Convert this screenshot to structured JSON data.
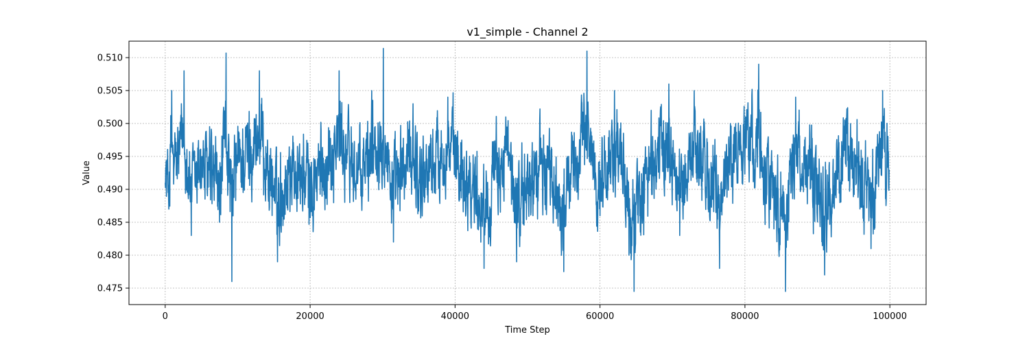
{
  "chart_data": {
    "type": "line",
    "title": "v1_simple - Channel 2",
    "xlabel": "Time Step",
    "ylabel": "Value",
    "xlim": [
      -5000,
      105000
    ],
    "ylim": [
      0.4725,
      0.5125
    ],
    "x_ticks": [
      0,
      20000,
      40000,
      60000,
      80000,
      100000
    ],
    "x_tick_labels": [
      "0",
      "20000",
      "40000",
      "60000",
      "80000",
      "100000"
    ],
    "y_ticks": [
      0.475,
      0.48,
      0.485,
      0.49,
      0.495,
      0.5,
      0.505,
      0.51
    ],
    "y_tick_labels": [
      "0.475",
      "0.480",
      "0.485",
      "0.490",
      "0.495",
      "0.500",
      "0.505",
      "0.510"
    ],
    "grid": true,
    "series_color": "#1f77b4",
    "series": [
      {
        "x": [
          0,
          500,
          900,
          1200,
          2600,
          3600,
          4800,
          7500,
          8400,
          9200,
          9700,
          13000,
          15500,
          17300,
          20300,
          24000,
          27000,
          28500,
          30100,
          31500,
          34200,
          35000,
          39000,
          43000,
          44000,
          47000,
          48500,
          52000,
          55000,
          56000,
          58200,
          60000,
          62000,
          64000,
          64700,
          67000,
          69500,
          71000,
          73000,
          76500,
          78000,
          81900,
          84000,
          85600,
          87000,
          91000,
          94000,
          97400,
          99000,
          99900
        ],
        "y": [
          0.491,
          0.487,
          0.505,
          0.493,
          0.508,
          0.483,
          0.496,
          0.485,
          0.5107,
          0.476,
          0.495,
          0.508,
          0.479,
          0.495,
          0.486,
          0.508,
          0.489,
          0.505,
          0.5114,
          0.482,
          0.503,
          0.49,
          0.504,
          0.486,
          0.478,
          0.501,
          0.479,
          0.496,
          0.4775,
          0.492,
          0.511,
          0.486,
          0.505,
          0.48,
          0.4745,
          0.495,
          0.506,
          0.483,
          0.505,
          0.478,
          0.5,
          0.509,
          0.484,
          0.4745,
          0.504,
          0.477,
          0.5,
          0.481,
          0.505,
          0.493
        ]
      }
    ]
  }
}
